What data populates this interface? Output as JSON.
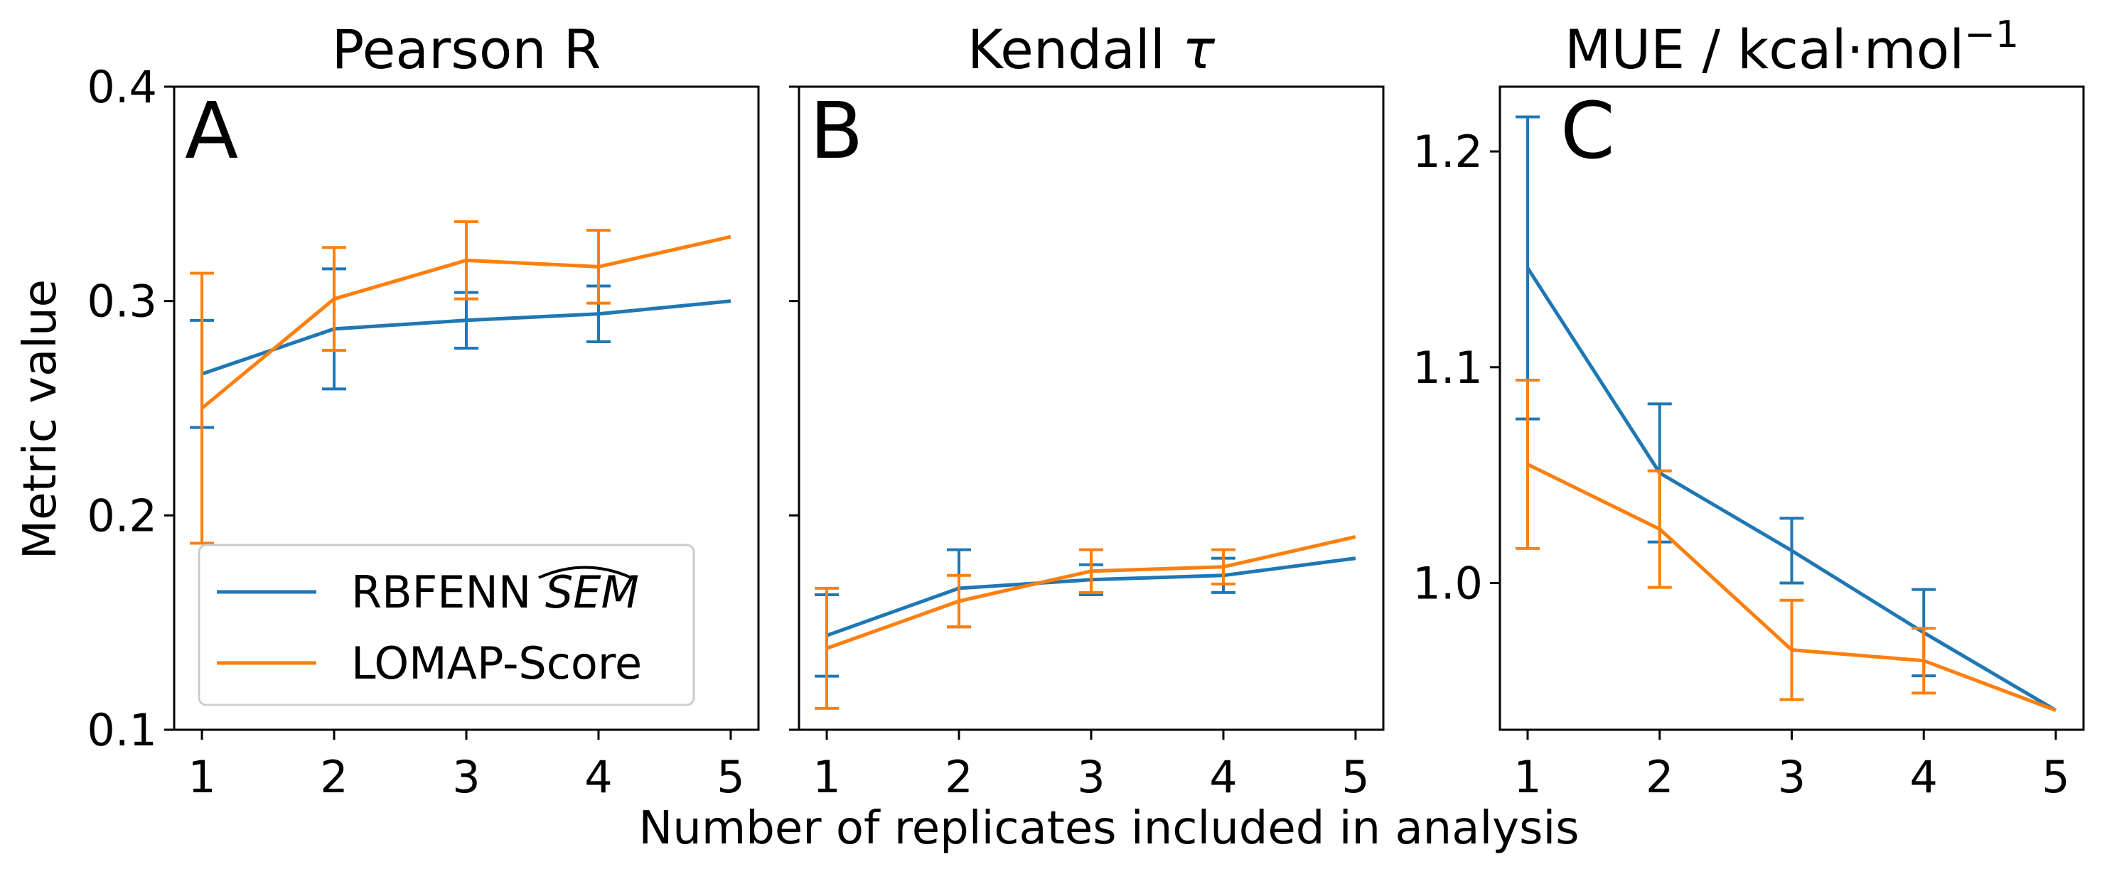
{
  "colors": {
    "rbfenn": "#1f77b4",
    "lomap": "#ff7f0e",
    "axis": "#000000",
    "legend_border": "#cccccc"
  },
  "figure": {
    "ylabel": "Metric value",
    "xlabel": "Number of replicates included in analysis"
  },
  "legend": {
    "placement": "lower-left of panel A",
    "entries": [
      {
        "key": "rbfenn",
        "label": "RBFENN SEM"
      },
      {
        "key": "lomap",
        "label": "LOMAP-Score"
      }
    ]
  },
  "chart_data": [
    {
      "type": "line",
      "panel": "A",
      "title": "Pearson R",
      "x": [
        1,
        2,
        3,
        4,
        5
      ],
      "xticks": [
        "1",
        "2",
        "3",
        "4",
        "5"
      ],
      "ylim": [
        0.1,
        0.4
      ],
      "yticks": [
        "0.1",
        "0.2",
        "0.3",
        "0.4"
      ],
      "grid": false,
      "series": [
        {
          "key": "rbfenn",
          "name": "RBFENN SEM",
          "values": [
            0.266,
            0.287,
            0.291,
            0.294,
            0.3
          ],
          "errors": [
            0.025,
            0.028,
            0.013,
            0.013,
            null
          ]
        },
        {
          "key": "lomap",
          "name": "LOMAP-Score",
          "values": [
            0.25,
            0.301,
            0.319,
            0.316,
            0.33
          ],
          "errors": [
            0.063,
            0.024,
            0.018,
            0.017,
            null
          ]
        }
      ]
    },
    {
      "type": "line",
      "panel": "B",
      "title": "Kendall τ",
      "x": [
        1,
        2,
        3,
        4,
        5
      ],
      "xticks": [
        "1",
        "2",
        "3",
        "4",
        "5"
      ],
      "ylim": [
        0.1,
        0.4
      ],
      "yticks": [],
      "shared_y": true,
      "grid": false,
      "series": [
        {
          "key": "rbfenn",
          "name": "RBFENN SEM",
          "values": [
            0.144,
            0.166,
            0.17,
            0.172,
            0.18
          ],
          "errors": [
            0.019,
            0.018,
            0.007,
            0.008,
            null
          ]
        },
        {
          "key": "lomap",
          "name": "LOMAP-Score",
          "values": [
            0.138,
            0.16,
            0.174,
            0.176,
            0.19
          ],
          "errors": [
            0.028,
            0.012,
            0.01,
            0.008,
            null
          ]
        }
      ]
    },
    {
      "type": "line",
      "panel": "C",
      "title": "MUE / kcal·mol⁻¹",
      "x": [
        1,
        2,
        3,
        4,
        5
      ],
      "xticks": [
        "1",
        "2",
        "3",
        "4",
        "5"
      ],
      "ylim": [
        0.932,
        1.23
      ],
      "yticks": [
        "1.0",
        "1.1",
        "1.2"
      ],
      "grid": false,
      "series": [
        {
          "key": "rbfenn",
          "name": "RBFENN SEM",
          "values": [
            1.146,
            1.051,
            1.015,
            0.977,
            0.941
          ],
          "errors": [
            0.07,
            0.032,
            0.015,
            0.02,
            null
          ]
        },
        {
          "key": "lomap",
          "name": "LOMAP-Score",
          "values": [
            1.055,
            1.025,
            0.969,
            0.964,
            0.941
          ],
          "errors": [
            0.039,
            0.027,
            0.023,
            0.015,
            null
          ]
        }
      ]
    }
  ]
}
